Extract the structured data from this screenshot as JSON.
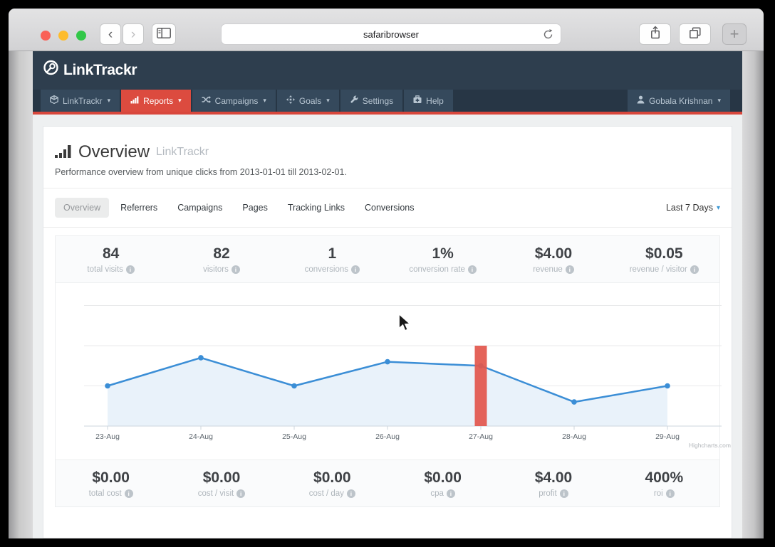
{
  "browser": {
    "url_text": "safaribrowser",
    "new_tab_glyph": "+",
    "back_glyph": "‹",
    "forward_glyph": "›"
  },
  "icons": {
    "info": "i",
    "caret_down": "▾"
  },
  "header": {
    "logo_text": "LinkTrackr"
  },
  "nav": {
    "items": [
      {
        "label": "LinkTrackr"
      },
      {
        "label": "Reports"
      },
      {
        "label": "Campaigns"
      },
      {
        "label": "Goals"
      },
      {
        "label": "Settings"
      },
      {
        "label": "Help"
      }
    ],
    "user": {
      "label": "Gobala Krishnan"
    }
  },
  "page": {
    "title": "Overview",
    "title_suffix": "LinkTrackr",
    "subtitle": "Performance overview from unique clicks from 2013-01-01 till 2013-02-01.",
    "tabs": [
      {
        "label": "Overview"
      },
      {
        "label": "Referrers"
      },
      {
        "label": "Campaigns"
      },
      {
        "label": "Pages"
      },
      {
        "label": "Tracking Links"
      },
      {
        "label": "Conversions"
      }
    ],
    "date_range": "Last 7 Days"
  },
  "stats_top": [
    {
      "value": "84",
      "label": "total visits"
    },
    {
      "value": "82",
      "label": "visitors"
    },
    {
      "value": "1",
      "label": "conversions"
    },
    {
      "value": "1%",
      "label": "conversion rate"
    },
    {
      "value": "$4.00",
      "label": "revenue"
    },
    {
      "value": "$0.05",
      "label": "revenue / visitor"
    }
  ],
  "stats_bottom": [
    {
      "value": "$0.00",
      "label": "total cost"
    },
    {
      "value": "$0.00",
      "label": "cost / visit"
    },
    {
      "value": "$0.00",
      "label": "cost / day"
    },
    {
      "value": "$0.00",
      "label": "cpa"
    },
    {
      "value": "$4.00",
      "label": "profit"
    },
    {
      "value": "400%",
      "label": "roi"
    }
  ],
  "chart_data": {
    "type": "area",
    "categories": [
      "23-Aug",
      "24-Aug",
      "25-Aug",
      "26-Aug",
      "27-Aug",
      "28-Aug",
      "29-Aug"
    ],
    "series": [
      {
        "name": "unique clicks",
        "values": [
          10,
          17,
          10,
          16,
          15,
          6,
          10
        ]
      }
    ],
    "title": "",
    "xlabel": "",
    "ylabel": "",
    "ylim": [
      0,
      30
    ],
    "gridlines": [
      0,
      10,
      20,
      30
    ],
    "grid": true,
    "legend": false,
    "line_color": "#3b8ed6",
    "fill_color": "#e9f2fa",
    "highlight_bar": {
      "category": "27-Aug",
      "value": 20,
      "color": "#e2574e"
    },
    "credit": "Highcharts.com"
  }
}
